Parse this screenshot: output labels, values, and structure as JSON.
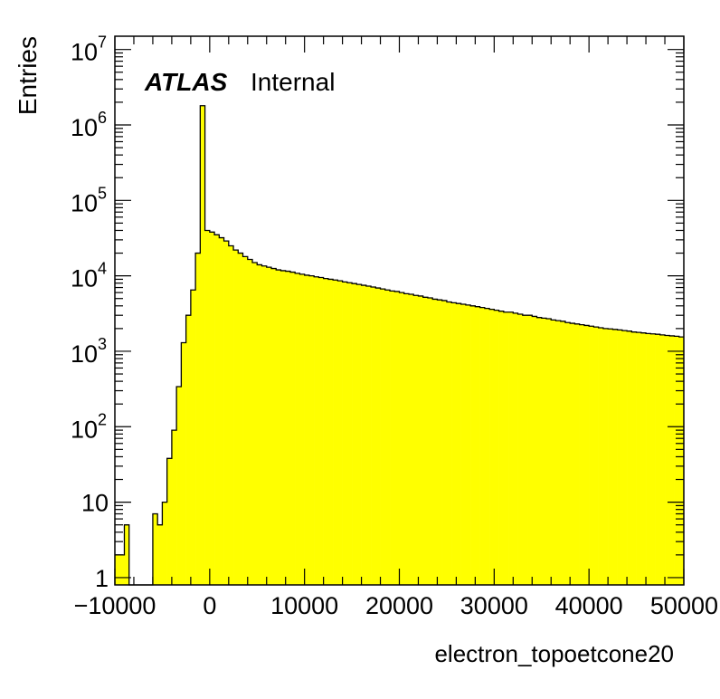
{
  "chart_data": {
    "type": "histogram",
    "annotation": {
      "bold": "ATLAS",
      "normal": "Internal"
    },
    "xlabel": "electron_topoetcone20",
    "ylabel": "Entries",
    "xlim": [
      -10000,
      50000
    ],
    "ylim": [
      0.8,
      15000000
    ],
    "yscale": "log",
    "grid": false,
    "fill_color": "#ffff00",
    "line_color": "#000000",
    "x_ticks": [
      {
        "value": -10000,
        "label": "−10000"
      },
      {
        "value": 0,
        "label": "0"
      },
      {
        "value": 10000,
        "label": "10000"
      },
      {
        "value": 20000,
        "label": "20000"
      },
      {
        "value": 30000,
        "label": "30000"
      },
      {
        "value": 40000,
        "label": "40000"
      },
      {
        "value": 50000,
        "label": "50000"
      }
    ],
    "y_ticks": [
      {
        "value": 1,
        "base": "1",
        "exp": ""
      },
      {
        "value": 10,
        "base": "10",
        "exp": ""
      },
      {
        "value": 100,
        "base": "10",
        "exp": "2"
      },
      {
        "value": 1000,
        "base": "10",
        "exp": "3"
      },
      {
        "value": 10000,
        "base": "10",
        "exp": "4"
      },
      {
        "value": 100000,
        "base": "10",
        "exp": "5"
      },
      {
        "value": 1000000,
        "base": "10",
        "exp": "6"
      },
      {
        "value": 10000000,
        "base": "10",
        "exp": "7"
      }
    ],
    "bin_width": 500,
    "bins_start": -10000,
    "values": [
      2,
      2,
      5,
      0,
      0,
      0,
      0,
      0,
      7,
      5,
      10,
      38,
      90,
      340,
      1300,
      3000,
      6500,
      20000,
      1800000,
      40000,
      38000,
      35000,
      32000,
      29000,
      25000,
      22000,
      20000,
      18000,
      16500,
      15000,
      14000,
      13500,
      13000,
      12500,
      12000,
      11700,
      11500,
      11200,
      10800,
      10500,
      10200,
      10000,
      9700,
      9500,
      9200,
      9000,
      8800,
      8600,
      8300,
      8100,
      7900,
      7700,
      7500,
      7300,
      7100,
      6900,
      6700,
      6500,
      6300,
      6200,
      6000,
      5800,
      5700,
      5500,
      5400,
      5200,
      5100,
      4900,
      4800,
      4700,
      4500,
      4400,
      4300,
      4200,
      4100,
      4000,
      3900,
      3800,
      3700,
      3600,
      3500,
      3400,
      3300,
      3300,
      3200,
      3100,
      3000,
      3000,
      2900,
      2800,
      2750,
      2700,
      2600,
      2550,
      2500,
      2400,
      2350,
      2300,
      2250,
      2200,
      2150,
      2100,
      2050,
      2000,
      1980,
      1950,
      1920,
      1880,
      1850,
      1800,
      1780,
      1750,
      1720,
      1700,
      1680,
      1650,
      1620,
      1600,
      1580,
      1550
    ]
  }
}
